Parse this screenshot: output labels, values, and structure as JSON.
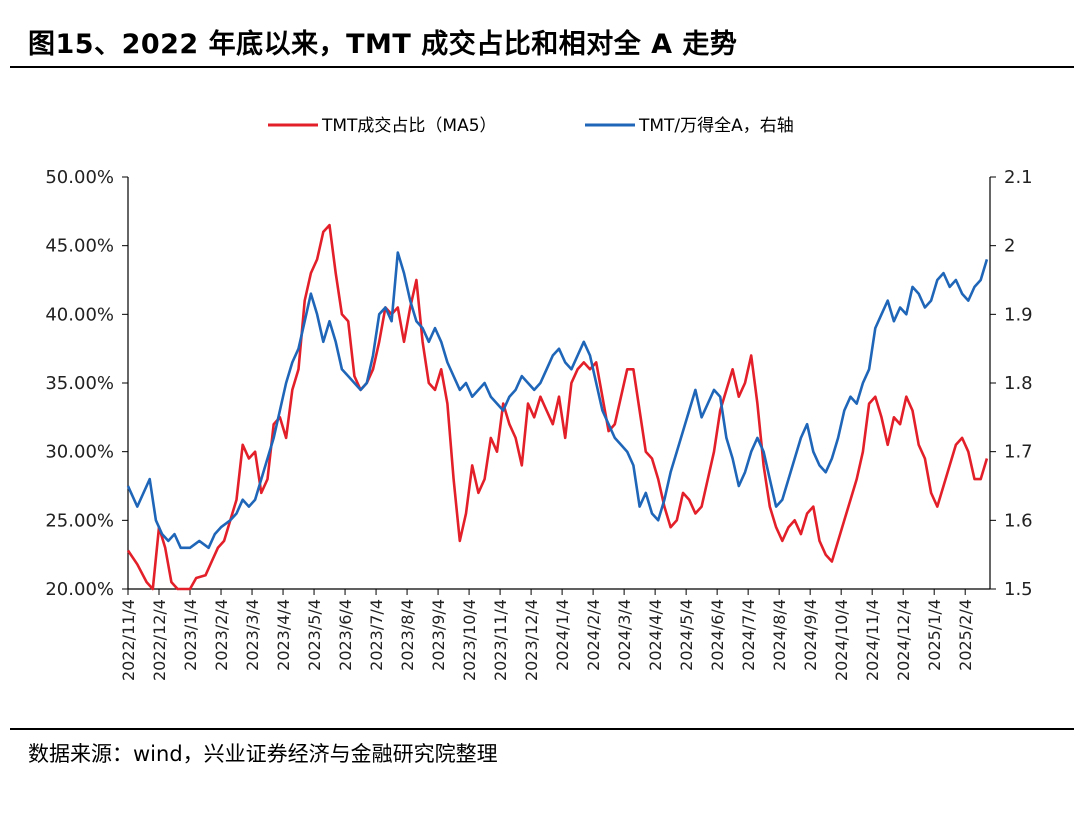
{
  "figure_title": "图15、2022 年底以来，TMT 成交占比和相对全 A 走势",
  "source": "数据来源：wind，兴业证券经济与金融研究院整理",
  "colors": {
    "red": "#e3202a",
    "blue": "#1f66b8",
    "axis": "#000000"
  },
  "chart_data": {
    "type": "line",
    "title": "图15、2022 年底以来，TMT 成交占比和相对全 A 走势",
    "legend_position": "top-center",
    "grid": false,
    "x_ticks": [
      "2022/11/4",
      "2022/12/4",
      "2023/1/4",
      "2023/2/4",
      "2023/3/4",
      "2023/4/4",
      "2023/5/4",
      "2023/6/4",
      "2023/7/4",
      "2023/8/4",
      "2023/9/4",
      "2023/10/4",
      "2023/11/4",
      "2023/12/4",
      "2024/1/4",
      "2024/2/4",
      "2024/3/4",
      "2024/4/4",
      "2024/5/4",
      "2024/6/4",
      "2024/7/4",
      "2024/8/4",
      "2024/9/4",
      "2024/10/4",
      "2024/11/4",
      "2024/12/4",
      "2025/1/4",
      "2025/2/4"
    ],
    "x_range_months": [
      0,
      27.8
    ],
    "y_left": {
      "range": [
        20,
        50
      ],
      "ticks": [
        20,
        25,
        30,
        35,
        40,
        45,
        50
      ],
      "tick_labels": [
        "20.00%",
        "25.00%",
        "30.00%",
        "35.00%",
        "40.00%",
        "45.00%",
        "50.00%"
      ]
    },
    "y_right": {
      "range": [
        1.5,
        2.1
      ],
      "ticks": [
        1.5,
        1.6,
        1.7,
        1.8,
        1.9,
        2.0,
        2.1
      ],
      "tick_labels": [
        "1.5",
        "1.6",
        "1.7",
        "1.8",
        "1.9",
        "2",
        "2.1"
      ]
    },
    "series": [
      {
        "name": "TMT成交占比（MA5）",
        "axis": "left",
        "unit": "%",
        "points": [
          [
            0,
            22.8
          ],
          [
            0.3,
            21.8
          ],
          [
            0.6,
            20.5
          ],
          [
            0.8,
            19.5
          ],
          [
            1.0,
            24.5
          ],
          [
            1.2,
            23
          ],
          [
            1.4,
            20.5
          ],
          [
            1.6,
            19.8
          ],
          [
            2.0,
            20
          ],
          [
            2.2,
            20.8
          ],
          [
            2.5,
            21
          ],
          [
            2.7,
            22
          ],
          [
            2.9,
            23
          ],
          [
            3.1,
            23.5
          ],
          [
            3.3,
            25
          ],
          [
            3.5,
            26.5
          ],
          [
            3.7,
            30.5
          ],
          [
            3.9,
            29.5
          ],
          [
            4.1,
            30
          ],
          [
            4.3,
            27
          ],
          [
            4.5,
            28
          ],
          [
            4.7,
            32
          ],
          [
            4.9,
            32.5
          ],
          [
            5.1,
            31
          ],
          [
            5.3,
            34.5
          ],
          [
            5.5,
            36
          ],
          [
            5.7,
            41
          ],
          [
            5.9,
            43
          ],
          [
            6.1,
            44
          ],
          [
            6.3,
            46
          ],
          [
            6.5,
            46.5
          ],
          [
            6.7,
            43
          ],
          [
            6.9,
            40
          ],
          [
            7.1,
            39.5
          ],
          [
            7.3,
            35.5
          ],
          [
            7.5,
            34.5
          ],
          [
            7.7,
            35
          ],
          [
            7.9,
            36
          ],
          [
            8.1,
            38
          ],
          [
            8.3,
            40.5
          ],
          [
            8.5,
            40
          ],
          [
            8.7,
            40.5
          ],
          [
            8.9,
            38
          ],
          [
            9.1,
            40.5
          ],
          [
            9.3,
            42.5
          ],
          [
            9.5,
            38
          ],
          [
            9.7,
            35
          ],
          [
            9.9,
            34.5
          ],
          [
            10.1,
            36
          ],
          [
            10.3,
            33.5
          ],
          [
            10.5,
            28
          ],
          [
            10.7,
            23.5
          ],
          [
            10.9,
            25.5
          ],
          [
            11.1,
            29
          ],
          [
            11.3,
            27
          ],
          [
            11.5,
            28
          ],
          [
            11.7,
            31
          ],
          [
            11.9,
            30
          ],
          [
            12.1,
            33.5
          ],
          [
            12.3,
            32
          ],
          [
            12.5,
            31
          ],
          [
            12.7,
            29
          ],
          [
            12.9,
            33.5
          ],
          [
            13.1,
            32.5
          ],
          [
            13.3,
            34
          ],
          [
            13.5,
            33
          ],
          [
            13.7,
            32
          ],
          [
            13.9,
            34
          ],
          [
            14.1,
            31
          ],
          [
            14.3,
            35
          ],
          [
            14.5,
            36
          ],
          [
            14.7,
            36.5
          ],
          [
            14.9,
            36
          ],
          [
            15.1,
            36.5
          ],
          [
            15.3,
            34
          ],
          [
            15.5,
            31.5
          ],
          [
            15.7,
            32
          ],
          [
            15.9,
            34
          ],
          [
            16.1,
            36
          ],
          [
            16.3,
            36
          ],
          [
            16.5,
            33
          ],
          [
            16.7,
            30
          ],
          [
            16.9,
            29.5
          ],
          [
            17.1,
            28
          ],
          [
            17.3,
            26
          ],
          [
            17.5,
            24.5
          ],
          [
            17.7,
            25
          ],
          [
            17.9,
            27
          ],
          [
            18.1,
            26.5
          ],
          [
            18.3,
            25.5
          ],
          [
            18.5,
            26
          ],
          [
            18.7,
            28
          ],
          [
            18.9,
            30
          ],
          [
            19.1,
            33
          ],
          [
            19.3,
            34.5
          ],
          [
            19.5,
            36
          ],
          [
            19.7,
            34
          ],
          [
            19.9,
            35
          ],
          [
            20.1,
            37
          ],
          [
            20.3,
            33.5
          ],
          [
            20.5,
            29
          ],
          [
            20.7,
            26
          ],
          [
            20.9,
            24.5
          ],
          [
            21.1,
            23.5
          ],
          [
            21.3,
            24.5
          ],
          [
            21.5,
            25
          ],
          [
            21.7,
            24
          ],
          [
            21.9,
            25.5
          ],
          [
            22.1,
            26
          ],
          [
            22.3,
            23.5
          ],
          [
            22.5,
            22.5
          ],
          [
            22.7,
            22
          ],
          [
            22.9,
            23.5
          ],
          [
            23.1,
            25
          ],
          [
            23.3,
            26.5
          ],
          [
            23.5,
            28
          ],
          [
            23.7,
            30
          ],
          [
            23.9,
            33.5
          ],
          [
            24.1,
            34
          ],
          [
            24.3,
            32.5
          ],
          [
            24.5,
            30.5
          ],
          [
            24.7,
            32.5
          ],
          [
            24.9,
            32
          ],
          [
            25.1,
            34
          ],
          [
            25.3,
            33
          ],
          [
            25.5,
            30.5
          ],
          [
            25.7,
            29.5
          ],
          [
            25.9,
            27
          ],
          [
            26.1,
            26
          ],
          [
            26.3,
            27.5
          ],
          [
            26.5,
            29
          ],
          [
            26.7,
            30.5
          ],
          [
            26.9,
            31
          ],
          [
            27.1,
            30
          ],
          [
            27.3,
            28
          ],
          [
            27.5,
            28
          ],
          [
            27.7,
            29.5
          ]
        ],
        "points_note": "MA5 series; x in months since 2022/11/4"
      },
      {
        "name": "TMT/万得全A，右轴",
        "axis": "right",
        "unit": "ratio",
        "points": [
          [
            0,
            1.65
          ],
          [
            0.3,
            1.62
          ],
          [
            0.5,
            1.64
          ],
          [
            0.7,
            1.66
          ],
          [
            0.9,
            1.6
          ],
          [
            1.1,
            1.58
          ],
          [
            1.3,
            1.57
          ],
          [
            1.5,
            1.58
          ],
          [
            1.7,
            1.56
          ],
          [
            2.0,
            1.56
          ],
          [
            2.3,
            1.57
          ],
          [
            2.6,
            1.56
          ],
          [
            2.8,
            1.58
          ],
          [
            3.0,
            1.59
          ],
          [
            3.3,
            1.6
          ],
          [
            3.5,
            1.61
          ],
          [
            3.7,
            1.63
          ],
          [
            3.9,
            1.62
          ],
          [
            4.1,
            1.63
          ],
          [
            4.3,
            1.66
          ],
          [
            4.5,
            1.69
          ],
          [
            4.7,
            1.72
          ],
          [
            4.9,
            1.76
          ],
          [
            5.1,
            1.8
          ],
          [
            5.3,
            1.83
          ],
          [
            5.5,
            1.85
          ],
          [
            5.7,
            1.89
          ],
          [
            5.9,
            1.93
          ],
          [
            6.1,
            1.9
          ],
          [
            6.3,
            1.86
          ],
          [
            6.5,
            1.89
          ],
          [
            6.7,
            1.86
          ],
          [
            6.9,
            1.82
          ],
          [
            7.1,
            1.81
          ],
          [
            7.3,
            1.8
          ],
          [
            7.5,
            1.79
          ],
          [
            7.7,
            1.8
          ],
          [
            7.9,
            1.84
          ],
          [
            8.1,
            1.9
          ],
          [
            8.3,
            1.91
          ],
          [
            8.5,
            1.89
          ],
          [
            8.7,
            1.99
          ],
          [
            8.9,
            1.96
          ],
          [
            9.1,
            1.92
          ],
          [
            9.3,
            1.89
          ],
          [
            9.5,
            1.88
          ],
          [
            9.7,
            1.86
          ],
          [
            9.9,
            1.88
          ],
          [
            10.1,
            1.86
          ],
          [
            10.3,
            1.83
          ],
          [
            10.5,
            1.81
          ],
          [
            10.7,
            1.79
          ],
          [
            10.9,
            1.8
          ],
          [
            11.1,
            1.78
          ],
          [
            11.3,
            1.79
          ],
          [
            11.5,
            1.8
          ],
          [
            11.7,
            1.78
          ],
          [
            11.9,
            1.77
          ],
          [
            12.1,
            1.76
          ],
          [
            12.3,
            1.78
          ],
          [
            12.5,
            1.79
          ],
          [
            12.7,
            1.81
          ],
          [
            12.9,
            1.8
          ],
          [
            13.1,
            1.79
          ],
          [
            13.3,
            1.8
          ],
          [
            13.5,
            1.82
          ],
          [
            13.7,
            1.84
          ],
          [
            13.9,
            1.85
          ],
          [
            14.1,
            1.83
          ],
          [
            14.3,
            1.82
          ],
          [
            14.5,
            1.84
          ],
          [
            14.7,
            1.86
          ],
          [
            14.9,
            1.84
          ],
          [
            15.1,
            1.8
          ],
          [
            15.3,
            1.76
          ],
          [
            15.5,
            1.74
          ],
          [
            15.7,
            1.72
          ],
          [
            15.9,
            1.71
          ],
          [
            16.1,
            1.7
          ],
          [
            16.3,
            1.68
          ],
          [
            16.5,
            1.62
          ],
          [
            16.7,
            1.64
          ],
          [
            16.9,
            1.61
          ],
          [
            17.1,
            1.6
          ],
          [
            17.3,
            1.63
          ],
          [
            17.5,
            1.67
          ],
          [
            17.7,
            1.7
          ],
          [
            17.9,
            1.73
          ],
          [
            18.1,
            1.76
          ],
          [
            18.3,
            1.79
          ],
          [
            18.5,
            1.75
          ],
          [
            18.7,
            1.77
          ],
          [
            18.9,
            1.79
          ],
          [
            19.1,
            1.78
          ],
          [
            19.3,
            1.72
          ],
          [
            19.5,
            1.69
          ],
          [
            19.7,
            1.65
          ],
          [
            19.9,
            1.67
          ],
          [
            20.1,
            1.7
          ],
          [
            20.3,
            1.72
          ],
          [
            20.5,
            1.7
          ],
          [
            20.7,
            1.66
          ],
          [
            20.9,
            1.62
          ],
          [
            21.1,
            1.63
          ],
          [
            21.3,
            1.66
          ],
          [
            21.5,
            1.69
          ],
          [
            21.7,
            1.72
          ],
          [
            21.9,
            1.74
          ],
          [
            22.1,
            1.7
          ],
          [
            22.3,
            1.68
          ],
          [
            22.5,
            1.67
          ],
          [
            22.7,
            1.69
          ],
          [
            22.9,
            1.72
          ],
          [
            23.1,
            1.76
          ],
          [
            23.3,
            1.78
          ],
          [
            23.5,
            1.77
          ],
          [
            23.7,
            1.8
          ],
          [
            23.9,
            1.82
          ],
          [
            24.1,
            1.88
          ],
          [
            24.3,
            1.9
          ],
          [
            24.5,
            1.92
          ],
          [
            24.7,
            1.89
          ],
          [
            24.9,
            1.91
          ],
          [
            25.1,
            1.9
          ],
          [
            25.3,
            1.94
          ],
          [
            25.5,
            1.93
          ],
          [
            25.7,
            1.91
          ],
          [
            25.9,
            1.92
          ],
          [
            26.1,
            1.95
          ],
          [
            26.3,
            1.96
          ],
          [
            26.5,
            1.94
          ],
          [
            26.7,
            1.95
          ],
          [
            26.9,
            1.93
          ],
          [
            27.1,
            1.92
          ],
          [
            27.3,
            1.94
          ],
          [
            27.5,
            1.95
          ],
          [
            27.7,
            1.98
          ]
        ]
      }
    ]
  }
}
